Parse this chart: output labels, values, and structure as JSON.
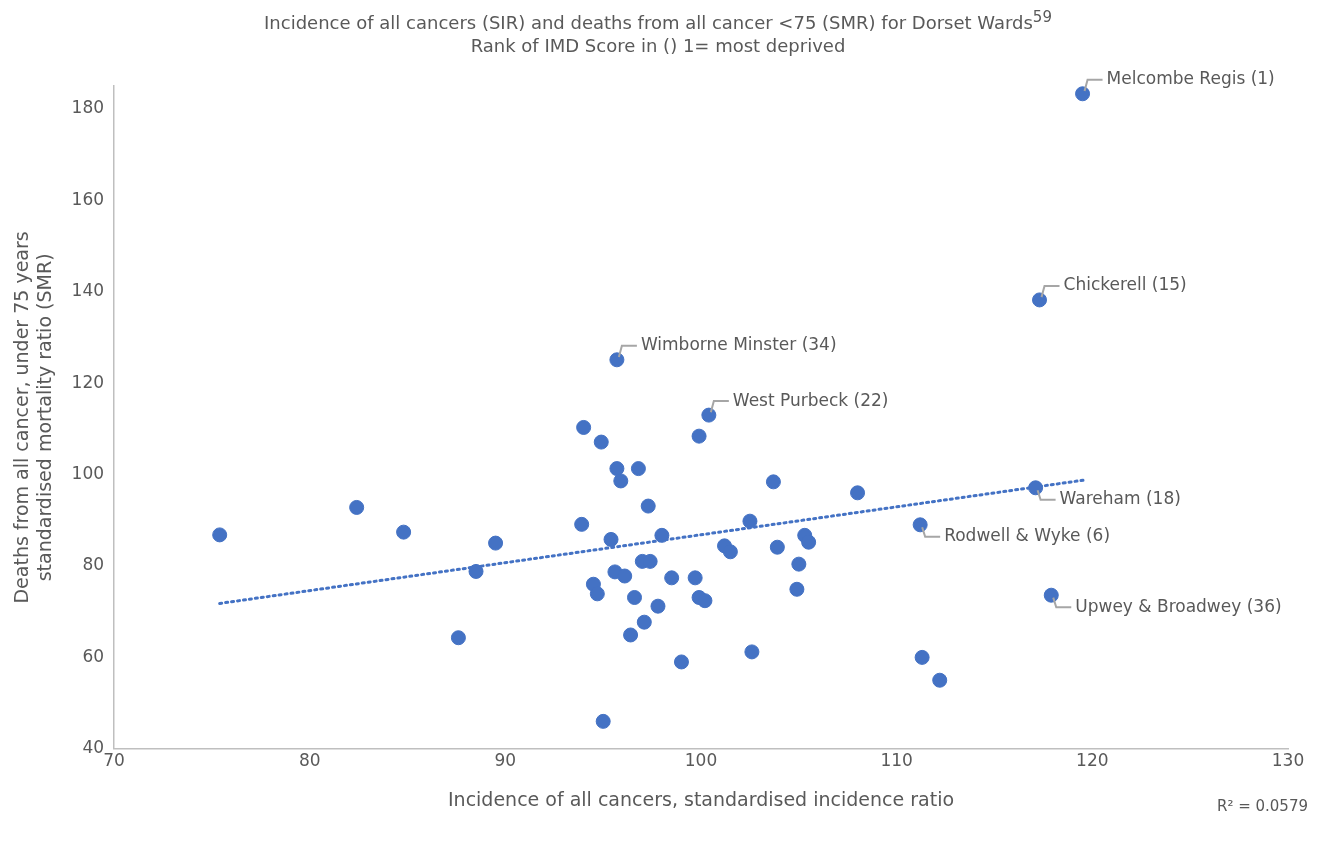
{
  "chart_data": {
    "type": "scatter",
    "title": "Incidence of all cancers (SIR)  and deaths from all cancer <75 (SMR) for Dorset Wards$^{59}$",
    "subtitle": "Rank of IMD Score in () 1= most deprived",
    "xlabel": "Incidence of all cancers, standardised incidence ratio",
    "ylabel": "Deaths from all cancer, under 75 years standardised mortality ratio (SMR)",
    "xlim": [
      70,
      130
    ],
    "xticks": [
      70,
      80,
      90,
      100,
      110,
      120,
      130
    ],
    "ylim": [
      40,
      185
    ],
    "yticks": [
      40,
      60,
      80,
      100,
      120,
      140,
      160,
      180
    ],
    "grid": false,
    "legend": false,
    "marker": "circle",
    "series": [
      {
        "type": "scatter",
        "color": "#4472c4",
        "x": [
          75.4,
          82.4,
          84.8,
          89.5,
          88.5,
          87.6,
          94.0,
          94.9,
          95.7,
          95.9,
          96.8,
          97.3,
          93.9,
          95.4,
          98.0,
          97.0,
          97.4,
          95.6,
          96.1,
          94.5,
          94.7,
          96.6,
          97.8,
          98.5,
          99.7,
          99.9,
          100.2,
          97.1,
          96.4,
          99.0,
          102.6,
          95.0,
          100.4,
          99.9,
          103.7,
          108.0,
          102.5,
          101.2,
          101.5,
          103.9,
          105.3,
          105.5,
          105.0,
          104.9,
          111.2,
          117.1,
          117.9,
          111.3,
          112.2,
          119.5,
          117.3,
          95.7
        ],
        "values": [
          86.8,
          92.8,
          87.4,
          85.0,
          78.8,
          64.3,
          110.3,
          107.1,
          101.3,
          98.6,
          101.3,
          93.1,
          89.1,
          85.8,
          86.7,
          81.0,
          81.0,
          78.7,
          77.8,
          76.0,
          73.9,
          73.1,
          71.2,
          77.4,
          77.4,
          73.1,
          72.4,
          67.7,
          64.9,
          59.0,
          61.2,
          46.0,
          113.0,
          108.4,
          98.4,
          96.0,
          89.8,
          84.4,
          83.1,
          84.1,
          86.7,
          85.2,
          80.4,
          74.9,
          89.0,
          97.1,
          73.6,
          60.0,
          55.0,
          183.3,
          138.2,
          125.1
        ]
      },
      {
        "type": "line",
        "color": "#4472c4",
        "line_style": "dotted",
        "marker": "none",
        "x": [
          75.4,
          119.6
        ],
        "values": [
          71.8,
          98.8
        ]
      }
    ],
    "annotations": [
      {
        "text": "Melcombe Regis (1)",
        "x": 119.5,
        "y": 183.3
      },
      {
        "text": "Chickerell (15)",
        "x": 117.3,
        "y": 138.2
      },
      {
        "text": "Wimborne Minster (34)",
        "x": 95.7,
        "y": 125.1
      },
      {
        "text": "West Purbeck (22)",
        "x": 100.4,
        "y": 113.0
      },
      {
        "text": "Wareham (18)",
        "x": 117.1,
        "y": 97.1
      },
      {
        "text": "Rodwell & Wyke (6)",
        "x": 111.2,
        "y": 89.0
      },
      {
        "text": "Upwey & Broadwey (36)",
        "x": 117.9,
        "y": 73.6
      },
      "R² = 0.0579"
    ]
  }
}
